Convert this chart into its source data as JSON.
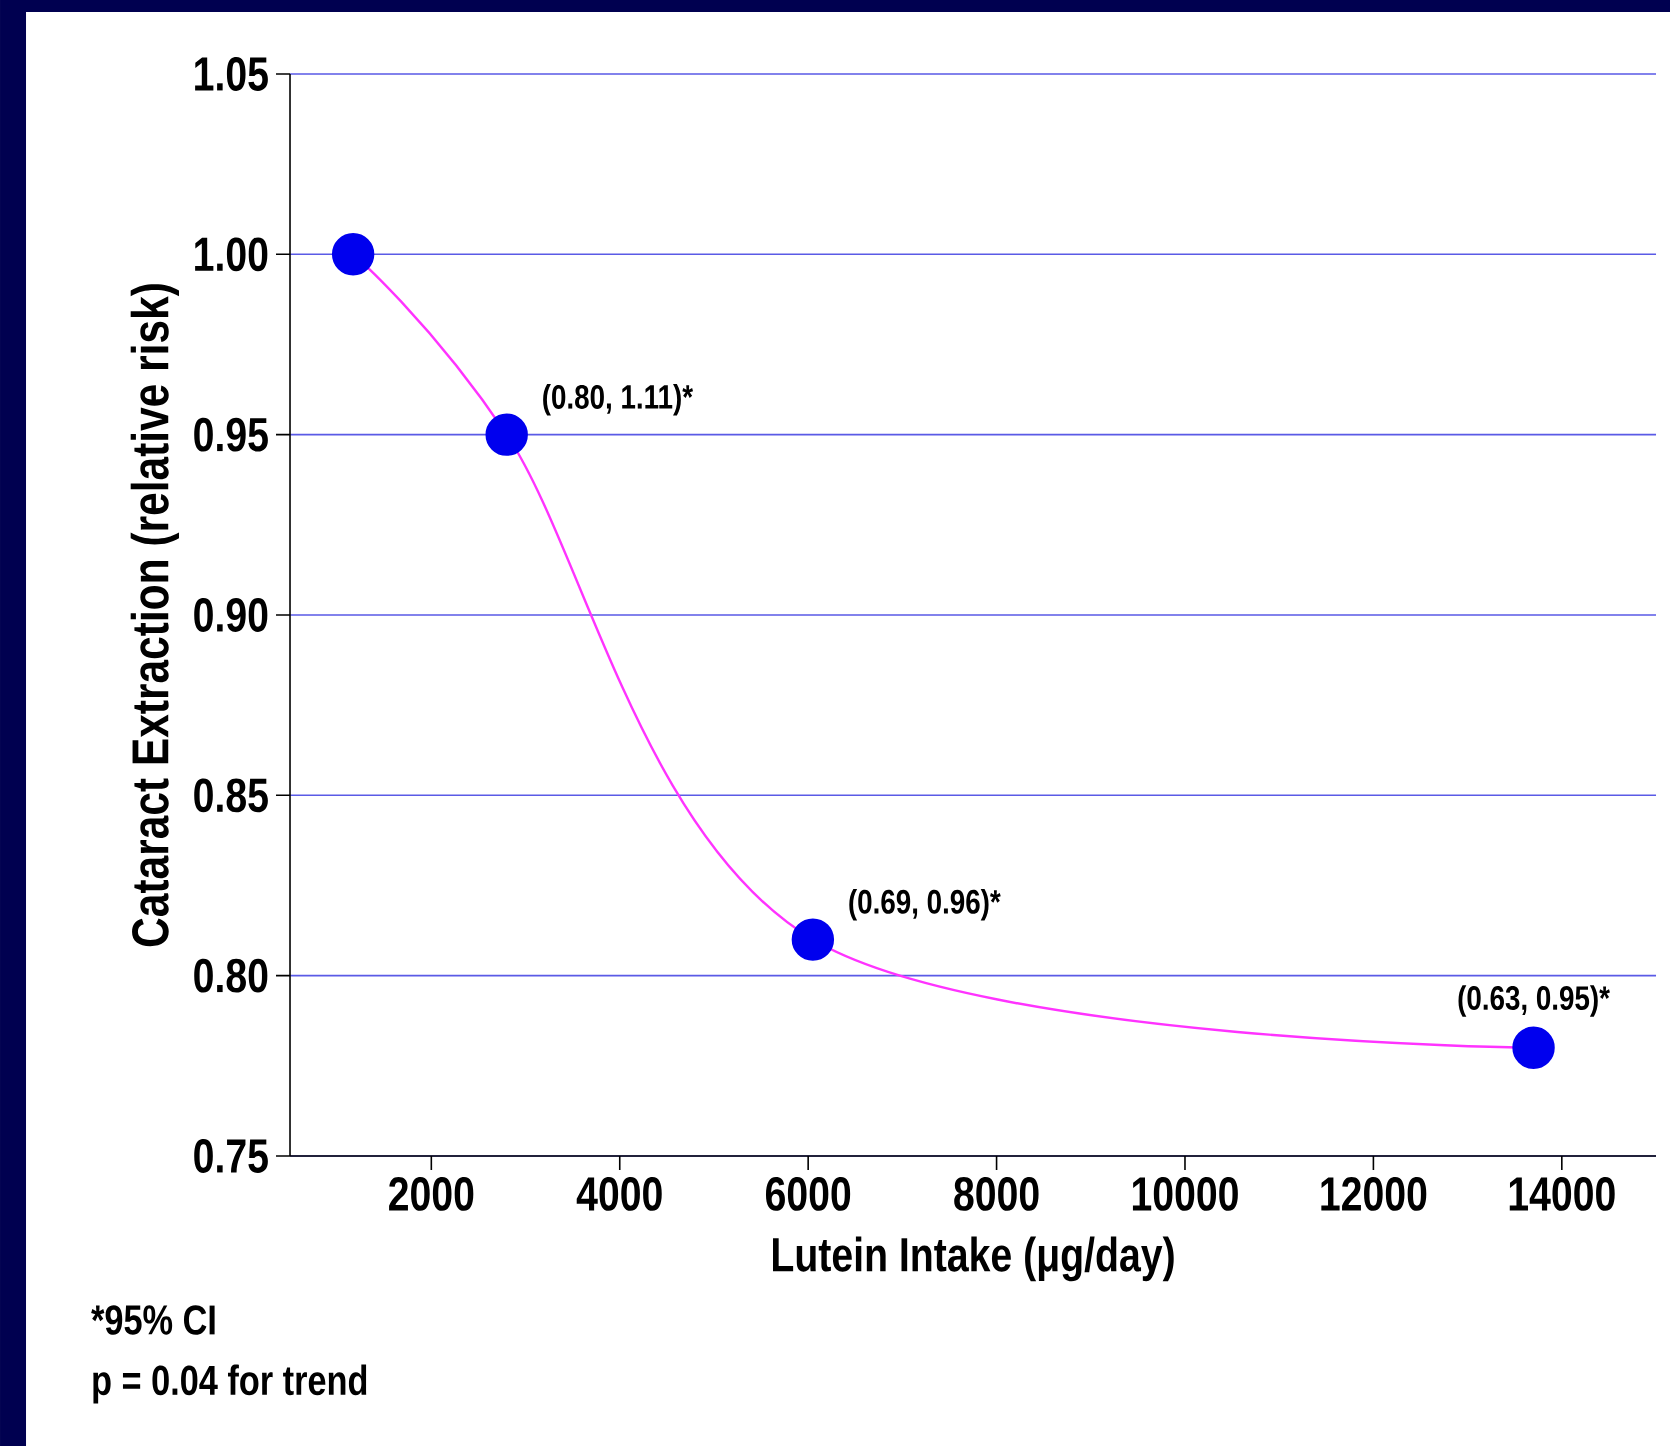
{
  "chart_data": {
    "type": "line",
    "xlabel": "Lutein Intake (μg/day)",
    "ylabel": "Cataract Extraction (relative risk)",
    "x": [
      1170,
      2800,
      6050,
      13700
    ],
    "series": [
      {
        "color": "#ff33ff",
        "values": [
          1.0,
          0.95,
          0.81,
          0.78
        ],
        "colors": [
          "#0000ee",
          "#0000ee",
          "#0000ee",
          "#0000ee"
        ]
      }
    ],
    "xlim": [
      500,
      15000
    ],
    "xticks": [
      2000,
      4000,
      6000,
      8000,
      10000,
      12000,
      14000
    ],
    "ylim": [
      0.75,
      1.05
    ],
    "yticks": [
      {
        "value": 0.75,
        "label": "0.75"
      },
      {
        "value": 0.8,
        "label": "0.80"
      },
      {
        "value": 0.85,
        "label": "0.85"
      },
      {
        "value": 0.9,
        "label": "0.90"
      },
      {
        "value": 0.95,
        "label": "0.95"
      },
      {
        "value": 1.0,
        "label": "1.00"
      },
      {
        "value": 1.05,
        "label": "1.05"
      }
    ],
    "grid": "y",
    "marker": "circle",
    "line_style": "solid",
    "annotations": [
      {
        "text": "(0.80, 1.11)*",
        "x": 2800,
        "y": 0.95
      },
      {
        "text": "(0.69, 0.96)*",
        "x": 6050,
        "y": 0.81
      },
      {
        "text": "(0.63, 0.95)*",
        "x": 13700,
        "y": 0.78
      },
      "*95% CI",
      "p = 0.04 for trend"
    ]
  }
}
